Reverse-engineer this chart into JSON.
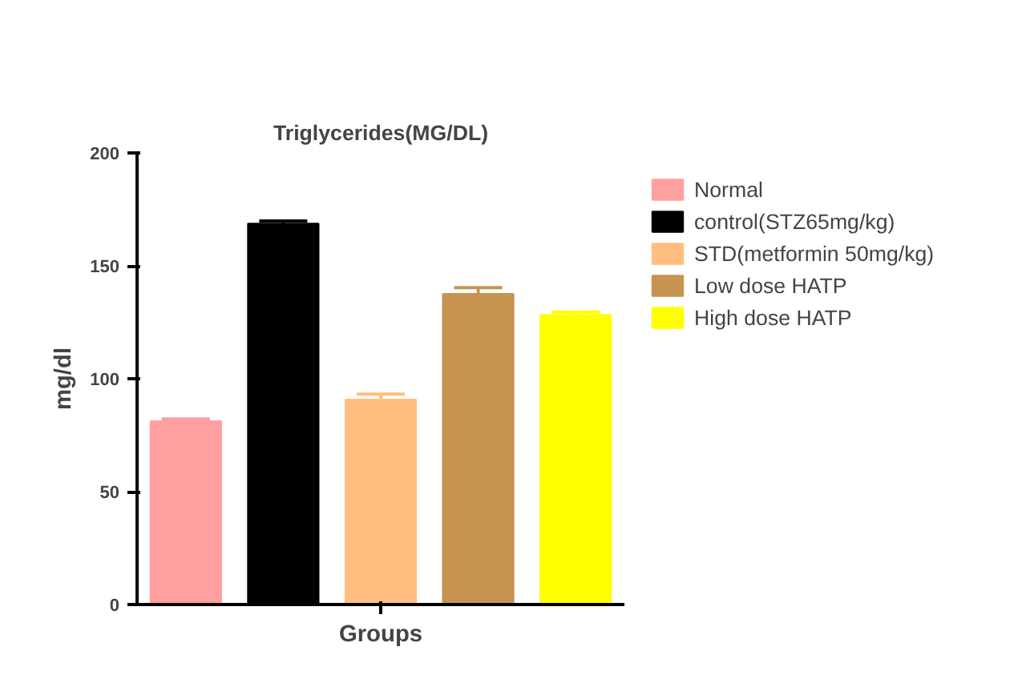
{
  "chart_data": {
    "type": "bar",
    "title": "Triglycerides(MG/DL)",
    "xlabel": "Groups",
    "ylabel": "mg/dl",
    "categories": [
      null
    ],
    "series": [
      {
        "name": "Normal",
        "color": "#ff9f9f",
        "values": [
          81.2
        ],
        "errors": [
          1.0
        ]
      },
      {
        "name": "control(STZ65mg/kg)",
        "color": "#000000",
        "values": [
          168.7
        ],
        "errors": [
          1.2
        ]
      },
      {
        "name": "STD(metformin 50mg/kg)",
        "color": "#ffbf80",
        "values": [
          90.8
        ],
        "errors": [
          2.4
        ]
      },
      {
        "name": "Low dose HATP",
        "color": "#c69350",
        "values": [
          137.6
        ],
        "errors": [
          2.7
        ]
      },
      {
        "name": "High dose HATP",
        "color": "#ffff00",
        "values": [
          128.3
        ],
        "errors": [
          1.2
        ]
      }
    ],
    "ylim": [
      0,
      200
    ],
    "yticks": [
      0,
      50,
      100,
      150,
      200
    ],
    "grid": false,
    "legend": "right",
    "tick_labels": "y"
  }
}
